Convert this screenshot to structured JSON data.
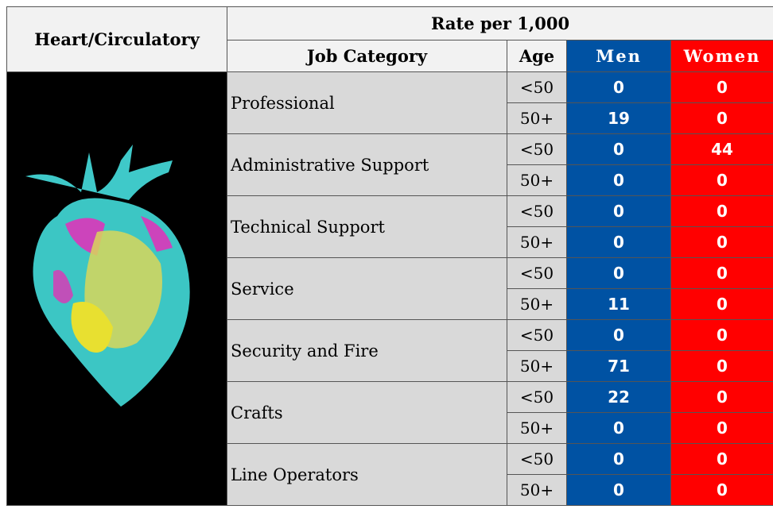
{
  "header": {
    "title": "Heart/Circulatory",
    "group": "Rate per 1,000",
    "columns": [
      "Job Category",
      "Age",
      "Men",
      "Women"
    ]
  },
  "table": {
    "rows": [
      {
        "category": "Professional",
        "groups": [
          {
            "age": "<50",
            "men": 0,
            "women": 0
          },
          {
            "age": "50+",
            "men": 19,
            "women": 0
          }
        ]
      },
      {
        "category": "Administrative Support",
        "groups": [
          {
            "age": "<50",
            "men": 0,
            "women": 44
          },
          {
            "age": "50+",
            "men": 0,
            "women": 0
          }
        ]
      },
      {
        "category": "Technical Support",
        "groups": [
          {
            "age": "<50",
            "men": 0,
            "women": 0
          },
          {
            "age": "50+",
            "men": 0,
            "women": 0
          }
        ]
      },
      {
        "category": "Service",
        "groups": [
          {
            "age": "<50",
            "men": 0,
            "women": 0
          },
          {
            "age": "50+",
            "men": 11,
            "women": 0
          }
        ]
      },
      {
        "category": "Security and Fire",
        "groups": [
          {
            "age": "<50",
            "men": 0,
            "women": 0
          },
          {
            "age": "50+",
            "men": 71,
            "women": 0
          }
        ]
      },
      {
        "category": "Crafts",
        "groups": [
          {
            "age": "<50",
            "men": 22,
            "women": 0
          },
          {
            "age": "50+",
            "men": 0,
            "women": 0
          }
        ]
      },
      {
        "category": "Line Operators",
        "groups": [
          {
            "age": "<50",
            "men": 0,
            "women": 0
          },
          {
            "age": "50+",
            "men": 0,
            "women": 0
          }
        ]
      }
    ]
  }
}
